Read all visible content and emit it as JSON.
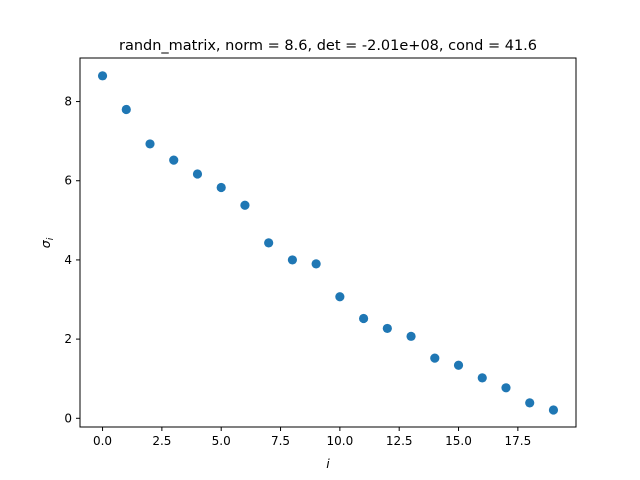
{
  "chart_data": {
    "type": "scatter",
    "title": "randn_matrix, norm = 8.6, det = -2.01e+08, cond = 41.6",
    "xlabel": "i",
    "ylabel": "σ",
    "ylabel_subscript": "i",
    "xlim": [
      -0.95,
      19.95
    ],
    "ylim": [
      -0.22,
      9.1
    ],
    "x_ticks": [
      0.0,
      2.5,
      5.0,
      7.5,
      10.0,
      12.5,
      15.0,
      17.5
    ],
    "x_tick_labels": [
      "0.0",
      "2.5",
      "5.0",
      "7.5",
      "10.0",
      "12.5",
      "15.0",
      "17.5"
    ],
    "y_ticks": [
      0,
      2,
      4,
      6,
      8
    ],
    "y_tick_labels": [
      "0",
      "2",
      "4",
      "6",
      "8"
    ],
    "grid": false,
    "marker_color": "#1f77b4",
    "x": [
      0,
      1,
      2,
      3,
      4,
      5,
      6,
      7,
      8,
      9,
      10,
      11,
      12,
      13,
      14,
      15,
      16,
      17,
      18,
      19
    ],
    "y": [
      8.65,
      7.8,
      6.93,
      6.52,
      6.17,
      5.83,
      5.38,
      4.43,
      4.0,
      3.9,
      3.07,
      2.52,
      2.27,
      2.07,
      1.52,
      1.34,
      1.02,
      0.77,
      0.39,
      0.21
    ]
  }
}
